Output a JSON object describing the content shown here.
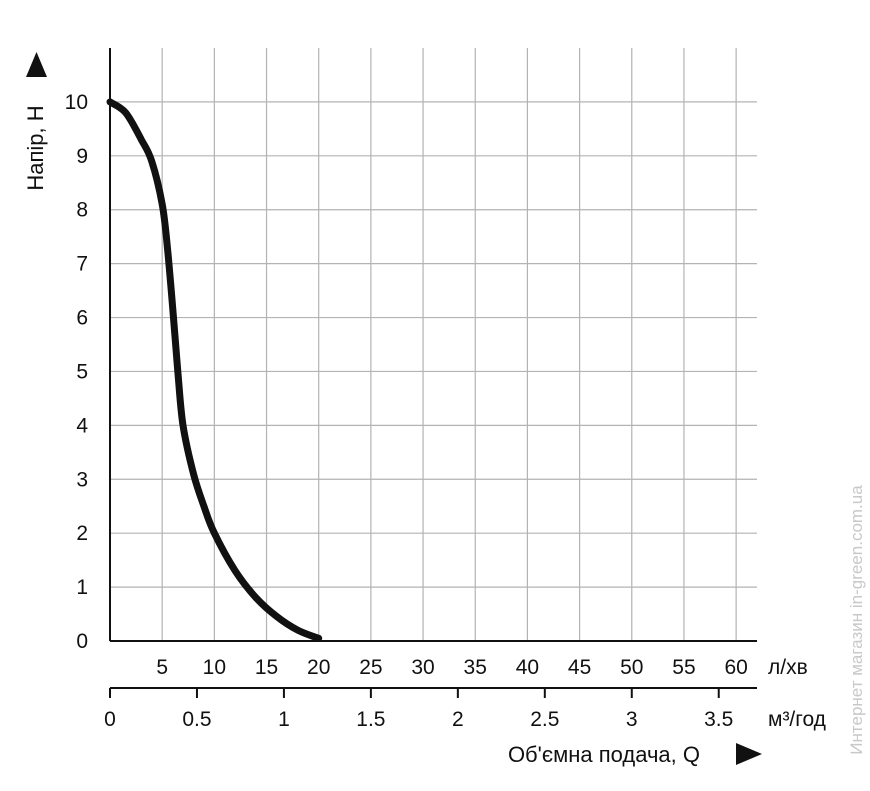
{
  "chart_data": {
    "type": "line",
    "title": "",
    "ylabel": "Напір, Н",
    "xlabel": "Об'ємна подача, Q",
    "ylim": [
      0,
      11
    ],
    "yticks": [
      "0",
      "1",
      "2",
      "3",
      "4",
      "5",
      "6",
      "7",
      "8",
      "9",
      "10"
    ],
    "x_axis_lpm": {
      "unit": "л/хв",
      "range": [
        0,
        62
      ],
      "ticks": [
        "5",
        "10",
        "15",
        "20",
        "25",
        "30",
        "35",
        "40",
        "45",
        "50",
        "55",
        "60"
      ]
    },
    "x_axis_m3h": {
      "unit": "м³/год",
      "range": [
        0,
        3.72
      ],
      "ticks": [
        "0",
        "0.5",
        "1",
        "1.5",
        "2",
        "2.5",
        "3",
        "3.5"
      ]
    },
    "grid": true,
    "series": [
      {
        "x_lpm": [
          0,
          1.5,
          3,
          4,
          5,
          5.5,
          6,
          6.5,
          7,
          8,
          9,
          10,
          12,
          14,
          16,
          18,
          20
        ],
        "y": [
          10,
          9.8,
          9.3,
          8.9,
          8.1,
          7.3,
          6.2,
          5.0,
          4.0,
          3.1,
          2.5,
          2.0,
          1.3,
          0.8,
          0.45,
          0.2,
          0.05
        ],
        "color": "#111111"
      }
    ]
  },
  "watermark": "Интернет магазин in-green.com.ua"
}
